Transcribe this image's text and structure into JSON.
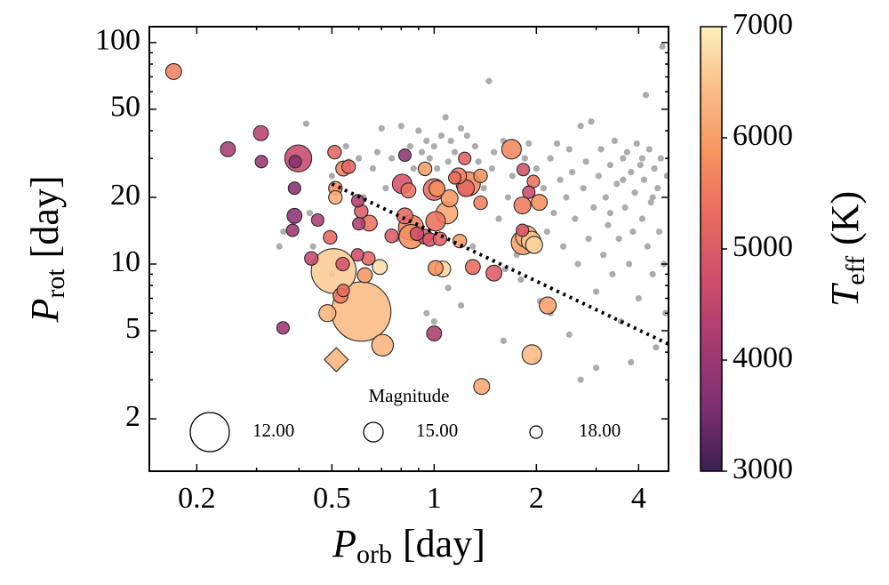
{
  "chart_data": {
    "type": "scatter",
    "x_label": {
      "main": "P",
      "sub": "orb",
      "unit": "[day]"
    },
    "y_label": {
      "main": "P",
      "sub": "rot",
      "unit": "[day]"
    },
    "xscale": "log",
    "yscale": "log",
    "xlim": [
      0.145,
      4.9
    ],
    "ylim": [
      1.16,
      118
    ],
    "xticks": [
      0.2,
      0.5,
      1,
      2,
      4
    ],
    "yticks": [
      2,
      5,
      10,
      20,
      50,
      100
    ],
    "xminorticks": [
      0.3,
      0.4,
      0.6,
      0.7,
      0.8,
      0.9,
      3
    ],
    "yminorticks": [
      3,
      4,
      6,
      7,
      8,
      9,
      30,
      40,
      60,
      70,
      80,
      90
    ],
    "background": {
      "color": "#a3a3a3",
      "points": [
        [
          0.35,
          12
        ],
        [
          0.36,
          14
        ],
        [
          0.42,
          43
        ],
        [
          0.43,
          17
        ],
        [
          0.44,
          12
        ],
        [
          0.5,
          25
        ],
        [
          0.5,
          9
        ],
        [
          0.55,
          34
        ],
        [
          0.56,
          29
        ],
        [
          0.6,
          30
        ],
        [
          0.62,
          20
        ],
        [
          0.66,
          27
        ],
        [
          0.68,
          32
        ],
        [
          0.7,
          41
        ],
        [
          0.72,
          22
        ],
        [
          0.75,
          30
        ],
        [
          0.78,
          13
        ],
        [
          0.8,
          42
        ],
        [
          0.85,
          34
        ],
        [
          0.87,
          27
        ],
        [
          0.9,
          40
        ],
        [
          0.92,
          32
        ],
        [
          0.95,
          36
        ],
        [
          0.97,
          30
        ],
        [
          1.0,
          34
        ],
        [
          1.02,
          27
        ],
        [
          1.05,
          38
        ],
        [
          1.08,
          46
        ],
        [
          1.1,
          29
        ],
        [
          1.12,
          36
        ],
        [
          1.15,
          32
        ],
        [
          1.2,
          41
        ],
        [
          1.25,
          38
        ],
        [
          1.3,
          12
        ],
        [
          1.32,
          34
        ],
        [
          1.35,
          29
        ],
        [
          1.4,
          22
        ],
        [
          1.45,
          67
        ],
        [
          1.48,
          27
        ],
        [
          1.5,
          32
        ],
        [
          1.55,
          16
        ],
        [
          1.6,
          36
        ],
        [
          1.62,
          9.5
        ],
        [
          1.65,
          20
        ],
        [
          1.7,
          25
        ],
        [
          1.75,
          11
        ],
        [
          1.8,
          8.5
        ],
        [
          1.85,
          30
        ],
        [
          1.9,
          35
        ],
        [
          2.0,
          27
        ],
        [
          2.05,
          6.8
        ],
        [
          2.1,
          22
        ],
        [
          2.15,
          14
        ],
        [
          2.2,
          30
        ],
        [
          2.25,
          17
        ],
        [
          2.3,
          35
        ],
        [
          2.35,
          24
        ],
        [
          2.4,
          12
        ],
        [
          2.45,
          20
        ],
        [
          2.5,
          33
        ],
        [
          2.55,
          26
        ],
        [
          2.6,
          16
        ],
        [
          2.65,
          10
        ],
        [
          2.7,
          42
        ],
        [
          2.75,
          22
        ],
        [
          2.8,
          29
        ],
        [
          2.85,
          13
        ],
        [
          2.9,
          44
        ],
        [
          2.95,
          18
        ],
        [
          3.0,
          7.5
        ],
        [
          3.05,
          25
        ],
        [
          3.1,
          33
        ],
        [
          3.15,
          11
        ],
        [
          3.2,
          20
        ],
        [
          3.25,
          15
        ],
        [
          3.3,
          28
        ],
        [
          3.35,
          9
        ],
        [
          3.4,
          36
        ],
        [
          3.45,
          23
        ],
        [
          3.5,
          13
        ],
        [
          3.55,
          5.5
        ],
        [
          3.6,
          30
        ],
        [
          3.65,
          18
        ],
        [
          3.7,
          32
        ],
        [
          3.75,
          10
        ],
        [
          3.8,
          26
        ],
        [
          3.85,
          14
        ],
        [
          3.9,
          21
        ],
        [
          3.95,
          35
        ],
        [
          4.0,
          7
        ],
        [
          4.05,
          28
        ],
        [
          4.1,
          16
        ],
        [
          4.15,
          24
        ],
        [
          4.2,
          58
        ],
        [
          4.25,
          12
        ],
        [
          4.3,
          33
        ],
        [
          4.35,
          19
        ],
        [
          4.4,
          9
        ],
        [
          4.45,
          27
        ],
        [
          4.5,
          4.2
        ],
        [
          4.55,
          22
        ],
        [
          4.6,
          14
        ],
        [
          4.65,
          30
        ],
        [
          4.7,
          96
        ],
        [
          4.75,
          10
        ],
        [
          4.8,
          6
        ],
        [
          4.85,
          25
        ],
        [
          1.0,
          5.5
        ],
        [
          1.2,
          6.5
        ],
        [
          2.0,
          3.7
        ],
        [
          2.5,
          4.8
        ],
        [
          3.0,
          3.4
        ],
        [
          2.7,
          3.0
        ],
        [
          3.8,
          3.6
        ],
        [
          2.2,
          6
        ],
        [
          1.6,
          4.5
        ],
        [
          0.95,
          6
        ],
        [
          1.1,
          7.8
        ],
        [
          3.6,
          24
        ],
        [
          4.1,
          30
        ],
        [
          4.4,
          20
        ],
        [
          3.3,
          17
        ]
      ]
    },
    "series": [
      {
        "marker": "o",
        "points": [
          [
            0.171,
            74,
            5600,
            16.2
          ],
          [
            0.247,
            33,
            4200,
            16.6
          ],
          [
            0.309,
            39,
            4400,
            16.6
          ],
          [
            0.31,
            29,
            4000,
            18
          ],
          [
            0.398,
            30,
            4600,
            13.5
          ],
          [
            0.39,
            29,
            3700,
            18
          ],
          [
            0.388,
            22,
            3700,
            18
          ],
          [
            0.388,
            16.5,
            3800,
            16.6
          ],
          [
            0.383,
            14.2,
            4000,
            18
          ],
          [
            0.454,
            15.8,
            4200,
            18
          ],
          [
            0.509,
            32,
            5200,
            17.3
          ],
          [
            0.54,
            27,
            5600,
            16.6
          ],
          [
            0.56,
            27.5,
            5200,
            17.3
          ],
          [
            0.512,
            22,
            5800,
            17.3
          ],
          [
            0.512,
            20,
            6200,
            17.3
          ],
          [
            0.596,
            19.3,
            4300,
            18
          ],
          [
            0.61,
            17.3,
            5000,
            17.3
          ],
          [
            0.644,
            15.3,
            5400,
            16.2
          ],
          [
            0.6,
            15.2,
            4300,
            18
          ],
          [
            0.494,
            13.2,
            5200,
            17.3
          ],
          [
            0.435,
            10.6,
            4600,
            17.3
          ],
          [
            0.506,
            9.3,
            6600,
            11.5
          ],
          [
            0.538,
            10,
            4800,
            17.3
          ],
          [
            0.595,
            11,
            4700,
            18
          ],
          [
            0.64,
            10.6,
            5200,
            17.3
          ],
          [
            0.692,
            9.7,
            6800,
            16.6
          ],
          [
            0.625,
            8.9,
            5900,
            16.6
          ],
          [
            0.54,
            7.6,
            5300,
            18
          ],
          [
            0.53,
            7.2,
            5500,
            16.6
          ],
          [
            0.61,
            6.1,
            6400,
            10.5
          ],
          [
            0.485,
            6.0,
            6300,
            15.8
          ],
          [
            0.359,
            5.15,
            4000,
            18
          ],
          [
            0.705,
            4.3,
            6300,
            14.5
          ],
          [
            0.805,
            23,
            4800,
            15
          ],
          [
            0.84,
            21.5,
            5400,
            16.6
          ],
          [
            0.82,
            16.5,
            5200,
            16.2
          ],
          [
            0.855,
            14.6,
            5600,
            13.8
          ],
          [
            0.855,
            13.3,
            5800,
            14
          ],
          [
            0.75,
            13.4,
            5000,
            17.3
          ],
          [
            0.82,
            31,
            3800,
            18
          ],
          [
            0.94,
            26.9,
            6000,
            17.3
          ],
          [
            1.0,
            21.7,
            5300,
            14.5
          ],
          [
            1.02,
            21.9,
            5800,
            16.2
          ],
          [
            1.09,
            17,
            6100,
            14.5
          ],
          [
            1.11,
            19.8,
            5900,
            15.8
          ],
          [
            1.18,
            25,
            5600,
            16.2
          ],
          [
            1.26,
            23,
            5700,
            14
          ],
          [
            1.24,
            22,
            5200,
            15.8
          ],
          [
            1.15,
            24.5,
            5300,
            18
          ],
          [
            1.37,
            25,
            5800,
            17.3
          ],
          [
            1.37,
            18.9,
            5600,
            17.3
          ],
          [
            1.23,
            30,
            5100,
            18
          ],
          [
            1.69,
            33,
            5700,
            15
          ],
          [
            1.83,
            26.7,
            4800,
            18
          ],
          [
            1.96,
            23.6,
            5400,
            18
          ],
          [
            1.9,
            21.1,
            4600,
            18
          ],
          [
            1.82,
            18.4,
            5500,
            15.8
          ],
          [
            2.04,
            19,
            5800,
            16.2
          ],
          [
            1.82,
            14.2,
            4900,
            18
          ],
          [
            1.87,
            13.3,
            6200,
            14.5
          ],
          [
            1.93,
            12.7,
            6500,
            15
          ],
          [
            1.97,
            12.2,
            6700,
            15.8
          ],
          [
            1.83,
            12.5,
            6000,
            14
          ],
          [
            1.01,
            15.6,
            5400,
            15
          ],
          [
            0.94,
            13.3,
            5000,
            16.6
          ],
          [
            0.97,
            12.9,
            4900,
            17.3
          ],
          [
            1.04,
            13,
            5100,
            17.3
          ],
          [
            0.89,
            13.7,
            4700,
            17.3
          ],
          [
            1.19,
            12.7,
            6000,
            17.3
          ],
          [
            1.01,
            9.6,
            5800,
            16.6
          ],
          [
            1.06,
            9.5,
            6700,
            16.2
          ],
          [
            1.3,
            9.7,
            5300,
            16.6
          ],
          [
            1.5,
            9.1,
            5000,
            16.2
          ],
          [
            1.0,
            4.86,
            4200,
            16.6
          ],
          [
            1.38,
            2.8,
            6100,
            16.2
          ],
          [
            1.94,
            3.9,
            6400,
            15
          ],
          [
            2.16,
            6.5,
            6000,
            15.8
          ]
        ]
      },
      {
        "marker": "D",
        "points": [
          [
            0.515,
            3.7,
            6300,
            14
          ]
        ]
      }
    ],
    "trend": {
      "style": "dotted",
      "color": "#000000",
      "x": [
        0.5,
        4.9
      ],
      "y": [
        23,
        4.35
      ]
    },
    "size_legend": {
      "title": "Magnitude",
      "entries": [
        {
          "value": 12,
          "label": "12.00"
        },
        {
          "value": 15,
          "label": "15.00"
        },
        {
          "value": 18,
          "label": "18.00"
        }
      ]
    },
    "colorbar": {
      "label": {
        "main": "T",
        "sub": "eff",
        "unit": "(K)"
      },
      "lim": [
        3000,
        7000
      ],
      "ticks": [
        3000,
        4000,
        5000,
        6000,
        7000
      ],
      "colors": [
        "#3b1f4f",
        "#7d2f73",
        "#a63a72",
        "#d04d6a",
        "#ea6a5f",
        "#f7935f",
        "#fbbd85",
        "#fdf0bd"
      ]
    }
  }
}
